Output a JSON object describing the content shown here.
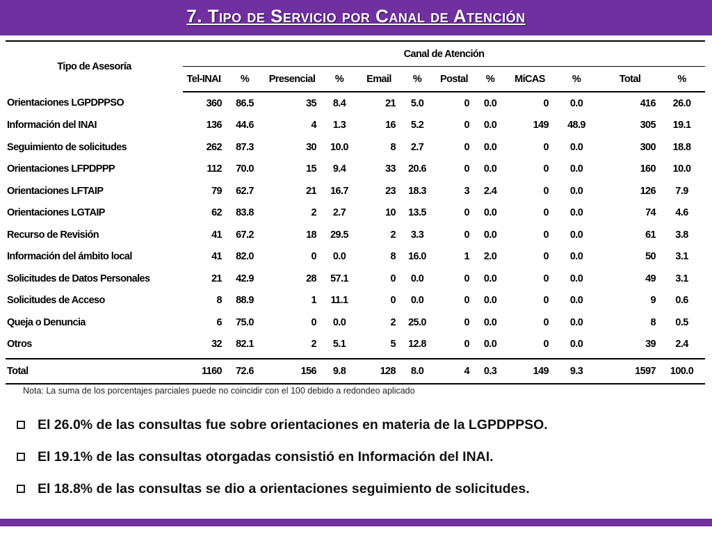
{
  "header": {
    "title": "7. Tipo de Servicio por Canal de Atención",
    "bar_color": "#7030a0"
  },
  "table": {
    "row_header": "Tipo de Asesoría",
    "channel_header": "Canal de Atención",
    "columns": [
      "Tel-INAI",
      "%",
      "Presencial",
      "%",
      "Email",
      "%",
      "Postal",
      "%",
      "MiCAS",
      "%",
      "Total",
      "%"
    ],
    "rows": [
      {
        "label": "Orientaciones LGPDPPSO",
        "values": [
          "360",
          "86.5",
          "35",
          "8.4",
          "21",
          "5.0",
          "0",
          "0.0",
          "0",
          "0.0",
          "416",
          "26.0"
        ]
      },
      {
        "label": "Información del INAI",
        "values": [
          "136",
          "44.6",
          "4",
          "1.3",
          "16",
          "5.2",
          "0",
          "0.0",
          "149",
          "48.9",
          "305",
          "19.1"
        ]
      },
      {
        "label": "Seguimiento de solicitudes",
        "values": [
          "262",
          "87.3",
          "30",
          "10.0",
          "8",
          "2.7",
          "0",
          "0.0",
          "0",
          "0.0",
          "300",
          "18.8"
        ]
      },
      {
        "label": "Orientaciones LFPDPPP",
        "values": [
          "112",
          "70.0",
          "15",
          "9.4",
          "33",
          "20.6",
          "0",
          "0.0",
          "0",
          "0.0",
          "160",
          "10.0"
        ]
      },
      {
        "label": "Orientaciones LFTAIP",
        "values": [
          "79",
          "62.7",
          "21",
          "16.7",
          "23",
          "18.3",
          "3",
          "2.4",
          "0",
          "0.0",
          "126",
          "7.9"
        ]
      },
      {
        "label": "Orientaciones LGTAIP",
        "values": [
          "62",
          "83.8",
          "2",
          "2.7",
          "10",
          "13.5",
          "0",
          "0.0",
          "0",
          "0.0",
          "74",
          "4.6"
        ]
      },
      {
        "label": "Recurso de Revisión",
        "values": [
          "41",
          "67.2",
          "18",
          "29.5",
          "2",
          "3.3",
          "0",
          "0.0",
          "0",
          "0.0",
          "61",
          "3.8"
        ]
      },
      {
        "label": "Información del ámbito local",
        "values": [
          "41",
          "82.0",
          "0",
          "0.0",
          "8",
          "16.0",
          "1",
          "2.0",
          "0",
          "0.0",
          "50",
          "3.1"
        ]
      },
      {
        "label": "Solicitudes de Datos Personales",
        "values": [
          "21",
          "42.9",
          "28",
          "57.1",
          "0",
          "0.0",
          "0",
          "0.0",
          "0",
          "0.0",
          "49",
          "3.1"
        ]
      },
      {
        "label": "Solicitudes de Acceso",
        "values": [
          "8",
          "88.9",
          "1",
          "11.1",
          "0",
          "0.0",
          "0",
          "0.0",
          "0",
          "0.0",
          "9",
          "0.6"
        ]
      },
      {
        "label": "Queja o Denuncia",
        "values": [
          "6",
          "75.0",
          "0",
          "0.0",
          "2",
          "25.0",
          "0",
          "0.0",
          "0",
          "0.0",
          "8",
          "0.5"
        ]
      },
      {
        "label": "Otros",
        "values": [
          "32",
          "82.1",
          "2",
          "5.1",
          "5",
          "12.8",
          "0",
          "0.0",
          "0",
          "0.0",
          "39",
          "2.4"
        ]
      }
    ],
    "total": {
      "label": "Total",
      "values": [
        "1160",
        "72.6",
        "156",
        "9.8",
        "128",
        "8.0",
        "4",
        "0.3",
        "149",
        "9.3",
        "1597",
        "100.0"
      ]
    }
  },
  "note": "Nota: La suma de los porcentajes parciales puede no coincidir con el 100 debido a redondeo aplicado",
  "bullets": [
    "El 26.0% de las consultas fue sobre orientaciones en materia de la LGPDPPSO.",
    "El 19.1% de las consultas otorgadas consistió en Información del INAI.",
    "El 18.8% de las consultas se dio a orientaciones seguimiento de solicitudes."
  ]
}
